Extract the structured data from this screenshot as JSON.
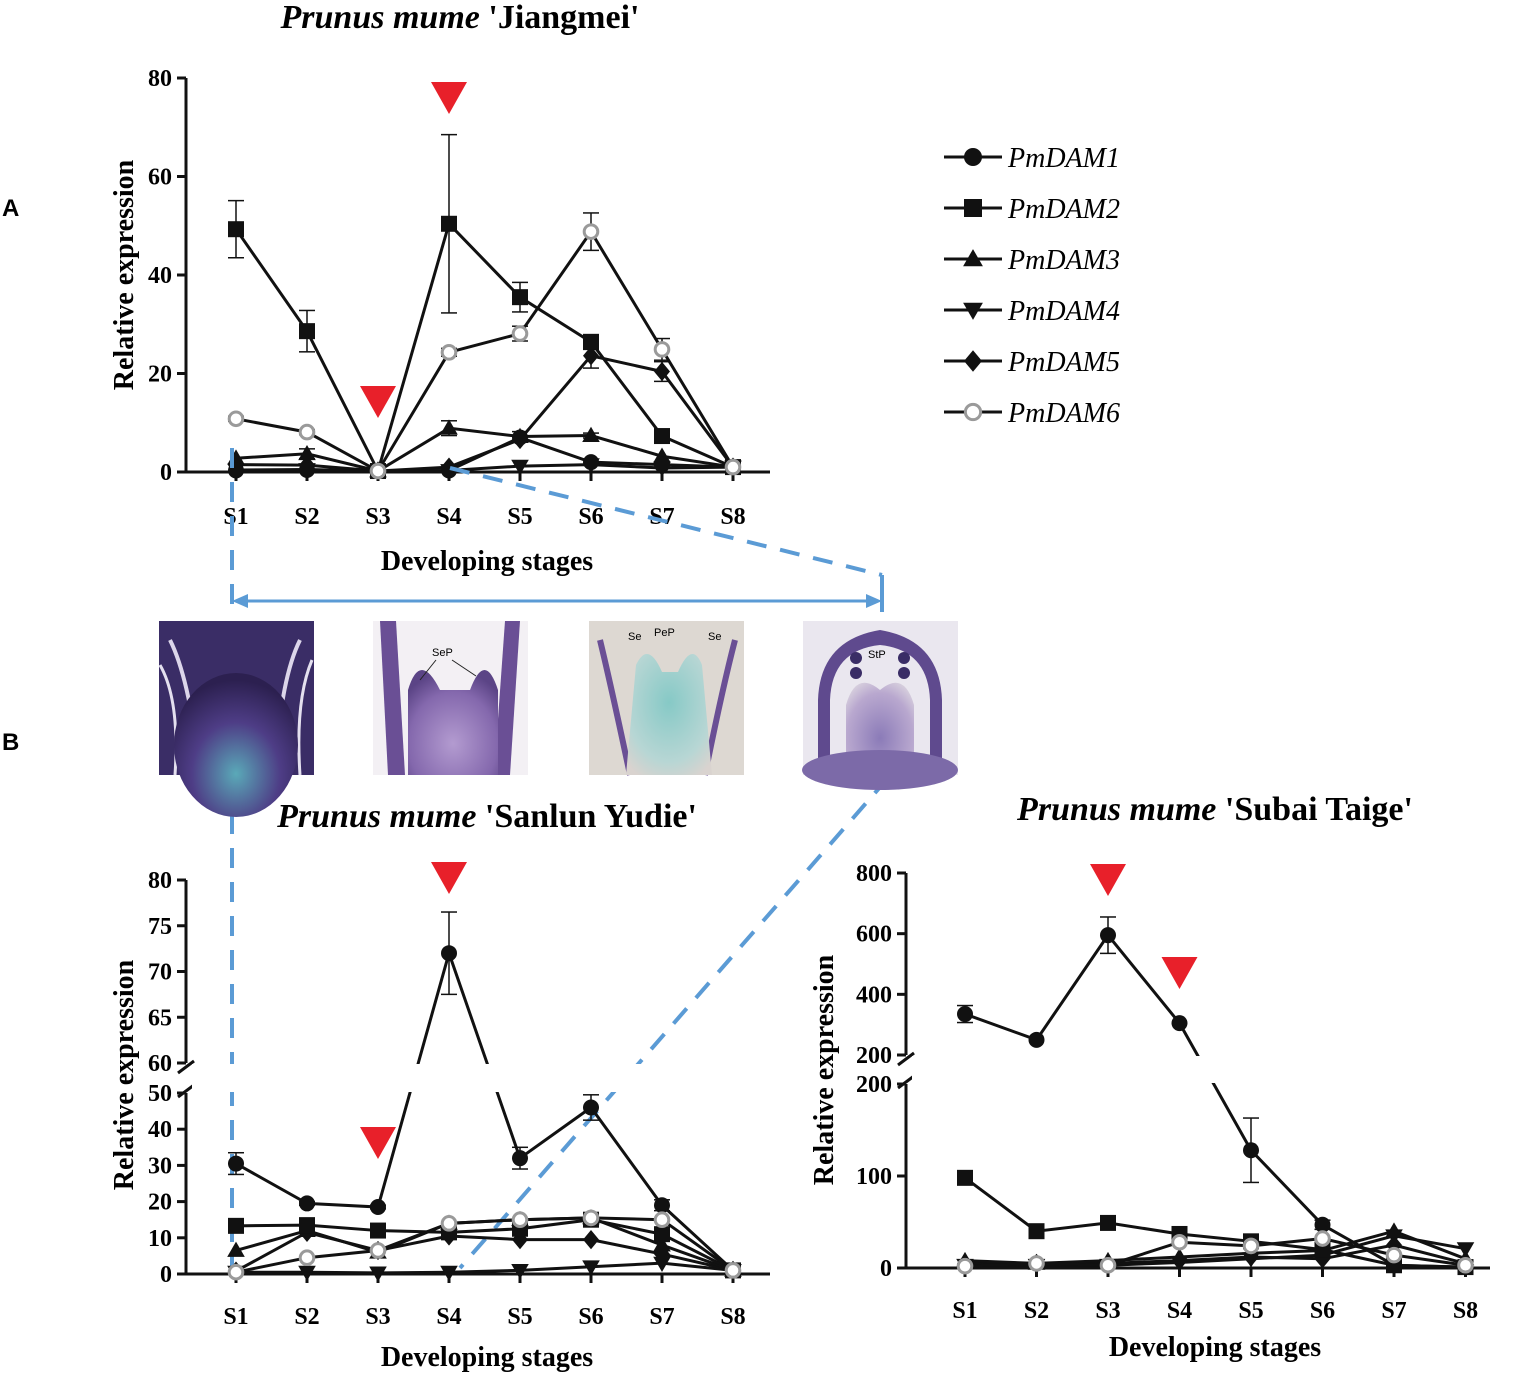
{
  "panel_labels": {
    "a": "A",
    "b": "B"
  },
  "legend": {
    "items": [
      {
        "label": "PmDAM1",
        "marker": "circle"
      },
      {
        "label": "PmDAM2",
        "marker": "square"
      },
      {
        "label": "PmDAM3",
        "marker": "triangle-up"
      },
      {
        "label": "PmDAM4",
        "marker": "triangle-down"
      },
      {
        "label": "PmDAM5",
        "marker": "diamond"
      },
      {
        "label": "PmDAM6",
        "marker": "open-circle"
      }
    ]
  },
  "micrographs": [
    {
      "labels": []
    },
    {
      "labels": [
        "SeP"
      ]
    },
    {
      "labels": [
        "Se",
        "PeP",
        "Se"
      ]
    },
    {
      "labels": [
        "StP"
      ]
    }
  ],
  "colors": {
    "line": "#111111",
    "open_marker": "#9a9a9a",
    "arrow": "#e8202a",
    "connector": "#5b9bd5",
    "tissue_dark": "#3b2c6e",
    "tissue_light": "#9a7fb8",
    "stain_blue": "#5aa9b8"
  },
  "chart_data": [
    {
      "type": "line",
      "title_italic": "Prunus mume",
      "title_cultivar": "'Jiangmei'",
      "xlabel": "Developing stages",
      "ylabel": "Relative expression",
      "categories": [
        "S1",
        "S2",
        "S3",
        "S4",
        "S5",
        "S6",
        "S7",
        "S8"
      ],
      "ylim": [
        0,
        80
      ],
      "yticks": [
        0,
        20,
        40,
        60,
        80
      ],
      "series": [
        {
          "name": "PmDAM1",
          "values": [
            0.3,
            0.4,
            0.2,
            0.3,
            7,
            2,
            1.5,
            1
          ]
        },
        {
          "name": "PmDAM2",
          "values": [
            49.3,
            28.6,
            0.2,
            50.4,
            35.5,
            26.4,
            7.3,
            1
          ]
        },
        {
          "name": "PmDAM3",
          "values": [
            2.8,
            3.7,
            0.2,
            8.9,
            7.2,
            7.4,
            3.2,
            1
          ]
        },
        {
          "name": "PmDAM4",
          "values": [
            0.4,
            0.5,
            0.2,
            0.3,
            1.2,
            1.5,
            0.8,
            1
          ]
        },
        {
          "name": "PmDAM5",
          "values": [
            1.5,
            1.4,
            0.2,
            1,
            6.6,
            23.6,
            20.4,
            1
          ]
        },
        {
          "name": "PmDAM6",
          "values": [
            10.8,
            8.1,
            0.2,
            24.3,
            28.1,
            48.8,
            24.9,
            1
          ]
        }
      ],
      "error_bars": {
        "PmDAM2": [
          5.8,
          4.2,
          0,
          18.1,
          3,
          1.5,
          1,
          0
        ],
        "PmDAM6": [
          0.5,
          0.5,
          0,
          0.8,
          1.5,
          3.8,
          2.2,
          0
        ],
        "PmDAM5": [
          0,
          0,
          0,
          0,
          0,
          2.5,
          2,
          0
        ],
        "PmDAM3": [
          0,
          1,
          0,
          1.5,
          1,
          0.5,
          0,
          0
        ]
      },
      "arrows_at": [
        "S3",
        "S4"
      ]
    },
    {
      "type": "line",
      "title_italic": "Prunus mume",
      "title_cultivar": "'Sanlun Yudie'",
      "xlabel": "Developing stages",
      "ylabel": "Relative expression",
      "categories": [
        "S1",
        "S2",
        "S3",
        "S4",
        "S5",
        "S6",
        "S7",
        "S8"
      ],
      "ylim_lower": [
        0,
        50
      ],
      "ylim_upper": [
        60,
        80
      ],
      "yticks_lower": [
        0,
        10,
        20,
        30,
        40,
        50
      ],
      "yticks_upper": [
        60,
        65,
        70,
        75,
        80
      ],
      "series": [
        {
          "name": "PmDAM1",
          "values": [
            30.5,
            19.5,
            18.5,
            72,
            32,
            46,
            19,
            1
          ]
        },
        {
          "name": "PmDAM2",
          "values": [
            13.3,
            13.5,
            12,
            11.5,
            12.5,
            15,
            11,
            1
          ]
        },
        {
          "name": "PmDAM3",
          "values": [
            6.5,
            12,
            6,
            14,
            15,
            15.5,
            8,
            1
          ]
        },
        {
          "name": "PmDAM4",
          "values": [
            0.5,
            0.5,
            0.3,
            0.5,
            1,
            2,
            3,
            1
          ]
        },
        {
          "name": "PmDAM5",
          "values": [
            0.8,
            11.5,
            6.5,
            10.5,
            9.5,
            9.5,
            5.5,
            1
          ]
        },
        {
          "name": "PmDAM6",
          "values": [
            0.5,
            4.5,
            6.5,
            14,
            15,
            15.5,
            15,
            1
          ]
        }
      ],
      "error_bars": {
        "PmDAM1": [
          3,
          0.5,
          0.5,
          4.5,
          3,
          3.5,
          1.5,
          0
        ]
      },
      "arrows_at": [
        "S3",
        "S4"
      ]
    },
    {
      "type": "line",
      "title_italic": "Prunus mume",
      "title_cultivar": "'Subai Taige'",
      "xlabel": "Developing stages",
      "ylabel": "Relative expression",
      "categories": [
        "S1",
        "S2",
        "S3",
        "S4",
        "S5",
        "S6",
        "S7",
        "S8"
      ],
      "ylim_lower": [
        0,
        200
      ],
      "ylim_upper": [
        200,
        800
      ],
      "yticks_lower": [
        0,
        100,
        200
      ],
      "yticks_upper": [
        200,
        400,
        600,
        800
      ],
      "series": [
        {
          "name": "PmDAM1",
          "values": [
            335,
            250,
            595,
            305,
            128,
            47,
            3,
            1
          ]
        },
        {
          "name": "PmDAM2",
          "values": [
            98,
            40,
            49,
            37,
            29,
            20,
            3,
            1
          ]
        },
        {
          "name": "PmDAM3",
          "values": [
            8,
            5,
            8,
            12,
            16,
            19,
            40,
            10
          ]
        },
        {
          "name": "PmDAM4",
          "values": [
            3,
            3,
            3,
            6,
            10,
            14,
            35,
            21
          ]
        },
        {
          "name": "PmDAM5",
          "values": [
            5,
            5,
            5,
            8,
            12,
            10,
            25,
            5
          ]
        },
        {
          "name": "PmDAM6",
          "values": [
            2,
            5,
            3,
            28,
            24,
            32,
            14,
            3
          ]
        }
      ],
      "error_bars": {
        "PmDAM1": [
          28,
          0,
          60,
          0,
          35,
          5,
          0,
          0
        ]
      },
      "arrows_at": [
        "S3",
        "S4"
      ]
    }
  ]
}
